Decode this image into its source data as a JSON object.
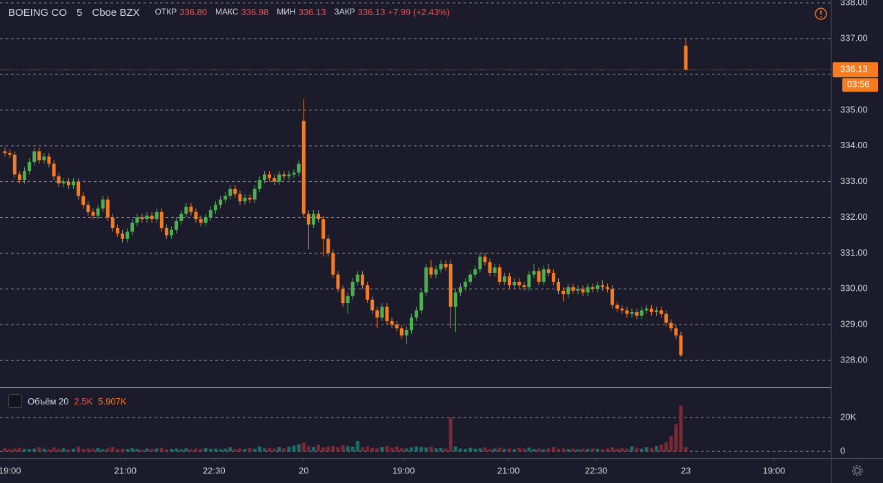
{
  "header": {
    "symbol": "BOEING CO",
    "interval": "5",
    "exchange": "Cboe BZX",
    "open_label": "ОТКР",
    "open": "336.80",
    "high_label": "МАКС",
    "high": "336.98",
    "low_label": "МИН",
    "low": "336.13",
    "close_label": "ЗАКР",
    "close": "336.13",
    "change": "+7.99 (+2.43%)"
  },
  "volume_legend": {
    "name": "Объём 20",
    "value": "2.5K",
    "average": "5.907K"
  },
  "chart_data": {
    "type": "candlestick",
    "open": [
      333.85,
      333.8,
      333.75,
      333.2,
      333.05,
      333.3,
      333.55,
      333.85,
      333.6,
      333.7,
      333.5,
      333.15,
      332.95,
      333.0,
      332.9,
      333.0,
      332.6,
      332.35,
      332.15,
      332.05,
      332.25,
      332.5,
      332.0,
      331.7,
      331.55,
      331.4,
      331.6,
      331.85,
      332.0,
      331.95,
      332.05,
      331.95,
      332.15,
      331.7,
      331.5,
      331.65,
      331.9,
      332.1,
      332.3,
      332.15,
      331.95,
      331.85,
      332.0,
      332.2,
      332.35,
      332.5,
      332.6,
      332.8,
      332.65,
      332.45,
      332.55,
      332.5,
      332.8,
      333.05,
      333.2,
      333.1,
      333.0,
      333.2,
      333.15,
      333.2,
      333.25,
      334.7,
      332.1,
      331.8,
      332.1,
      331.95,
      331.4,
      331.0,
      330.4,
      330.0,
      329.6,
      329.8,
      330.2,
      330.4,
      330.1,
      329.7,
      329.4,
      329.2,
      329.5,
      329.1,
      329.0,
      328.9,
      328.7,
      328.85,
      329.2,
      329.4,
      329.9,
      330.6,
      330.4,
      330.55,
      330.7,
      330.7,
      329.5,
      329.9,
      330.05,
      330.2,
      330.4,
      330.55,
      330.9,
      330.75,
      330.45,
      330.6,
      330.2,
      330.35,
      330.1,
      330.2,
      330.1,
      330.05,
      330.4,
      330.5,
      330.2,
      330.55,
      330.45,
      330.2,
      329.95,
      329.85,
      330.05,
      329.95,
      330.0,
      329.9,
      330.05,
      330.0,
      330.1,
      330.05,
      330.0,
      329.55,
      329.45,
      329.4,
      329.3,
      329.35,
      329.25,
      329.4,
      329.45,
      329.35,
      329.4,
      329.3,
      329.05,
      328.9,
      328.7,
      336.8
    ],
    "high": [
      333.95,
      333.9,
      333.85,
      333.3,
      333.4,
      333.65,
      333.95,
      333.95,
      333.8,
      333.8,
      333.6,
      333.25,
      333.1,
      333.1,
      333.1,
      333.1,
      332.7,
      332.45,
      332.25,
      332.35,
      332.6,
      332.6,
      332.1,
      331.8,
      331.65,
      331.7,
      331.95,
      332.1,
      332.1,
      332.15,
      332.15,
      332.25,
      332.25,
      331.8,
      331.75,
      332.0,
      332.2,
      332.4,
      332.4,
      332.25,
      332.05,
      332.1,
      332.3,
      332.45,
      332.6,
      332.7,
      332.9,
      332.9,
      332.75,
      332.65,
      332.65,
      332.9,
      333.15,
      333.3,
      333.3,
      333.2,
      333.3,
      333.3,
      333.3,
      333.35,
      333.6,
      335.3,
      332.2,
      332.2,
      332.2,
      332.05,
      331.5,
      331.1,
      330.5,
      330.1,
      329.9,
      330.3,
      330.5,
      330.5,
      330.2,
      329.8,
      329.5,
      329.6,
      329.6,
      329.2,
      329.1,
      329.0,
      328.95,
      329.3,
      329.5,
      330.0,
      330.7,
      330.8,
      330.65,
      330.8,
      330.8,
      330.8,
      330.0,
      330.15,
      330.3,
      330.5,
      330.65,
      331.0,
      331.0,
      330.85,
      330.7,
      330.7,
      330.45,
      330.45,
      330.3,
      330.3,
      330.2,
      330.5,
      330.7,
      330.6,
      330.65,
      330.7,
      330.55,
      330.3,
      330.05,
      330.15,
      330.15,
      330.1,
      330.1,
      330.15,
      330.15,
      330.2,
      330.25,
      330.15,
      330.1,
      329.65,
      329.55,
      329.5,
      329.45,
      329.45,
      329.5,
      329.55,
      329.55,
      329.5,
      329.5,
      329.4,
      329.15,
      329.0,
      328.8,
      336.98
    ],
    "low": [
      333.7,
      333.65,
      333.1,
      332.95,
      332.95,
      333.2,
      333.45,
      333.5,
      333.5,
      333.4,
      333.05,
      332.85,
      332.85,
      332.8,
      332.8,
      332.5,
      332.25,
      332.05,
      331.95,
      331.95,
      332.15,
      331.9,
      331.6,
      331.45,
      331.3,
      331.3,
      331.5,
      331.75,
      331.85,
      331.85,
      331.85,
      331.85,
      331.6,
      331.4,
      331.4,
      331.55,
      331.8,
      332.0,
      332.05,
      331.85,
      331.75,
      331.75,
      331.9,
      332.1,
      332.25,
      332.4,
      332.5,
      332.55,
      332.35,
      332.35,
      332.4,
      332.4,
      332.7,
      332.95,
      333.0,
      332.9,
      332.9,
      333.05,
      333.05,
      333.1,
      333.15,
      332.0,
      331.1,
      331.7,
      331.85,
      330.9,
      330.9,
      330.3,
      329.9,
      329.5,
      329.3,
      329.7,
      330.1,
      330.0,
      329.6,
      329.3,
      328.9,
      329.1,
      329.0,
      328.9,
      328.8,
      328.6,
      328.45,
      328.75,
      329.1,
      329.3,
      329.8,
      330.3,
      330.3,
      330.45,
      330.5,
      328.9,
      328.8,
      329.8,
      329.95,
      330.1,
      330.3,
      330.45,
      330.65,
      330.35,
      330.35,
      330.1,
      330.1,
      330.0,
      330.0,
      330.0,
      329.95,
      329.95,
      330.3,
      330.1,
      330.1,
      330.35,
      330.1,
      329.85,
      329.65,
      329.75,
      329.85,
      329.85,
      329.8,
      329.8,
      329.9,
      329.9,
      329.95,
      329.9,
      329.45,
      329.35,
      329.3,
      329.2,
      329.2,
      329.15,
      329.15,
      329.3,
      329.25,
      329.25,
      329.2,
      328.95,
      328.8,
      328.6,
      328.1,
      336.13
    ],
    "close": [
      333.8,
      333.75,
      333.2,
      333.05,
      333.3,
      333.55,
      333.85,
      333.6,
      333.7,
      333.5,
      333.15,
      332.95,
      333.0,
      332.9,
      333.0,
      332.6,
      332.35,
      332.15,
      332.05,
      332.25,
      332.5,
      332.0,
      331.7,
      331.55,
      331.4,
      331.6,
      331.85,
      332.0,
      331.95,
      332.05,
      331.95,
      332.15,
      331.7,
      331.5,
      331.65,
      331.9,
      332.1,
      332.3,
      332.15,
      331.95,
      331.85,
      332.0,
      332.2,
      332.35,
      332.5,
      332.6,
      332.8,
      332.65,
      332.45,
      332.55,
      332.5,
      332.8,
      333.05,
      333.2,
      333.1,
      333.0,
      333.2,
      333.15,
      333.2,
      333.25,
      333.5,
      332.1,
      331.8,
      332.1,
      331.95,
      331.4,
      331.0,
      330.4,
      330.0,
      329.6,
      329.8,
      330.2,
      330.4,
      330.1,
      329.7,
      329.4,
      329.2,
      329.5,
      329.1,
      329.0,
      328.9,
      328.7,
      328.85,
      329.2,
      329.4,
      329.9,
      330.6,
      330.4,
      330.55,
      330.7,
      330.6,
      329.5,
      329.9,
      330.05,
      330.2,
      330.4,
      330.55,
      330.9,
      330.75,
      330.45,
      330.6,
      330.2,
      330.35,
      330.1,
      330.2,
      330.1,
      330.05,
      330.4,
      330.5,
      330.2,
      330.55,
      330.45,
      330.2,
      329.95,
      329.85,
      330.05,
      329.95,
      330.0,
      329.9,
      330.05,
      330.0,
      330.1,
      330.05,
      330.0,
      329.55,
      329.45,
      329.4,
      329.3,
      329.35,
      329.25,
      329.4,
      329.45,
      329.35,
      329.4,
      329.3,
      329.05,
      328.9,
      328.7,
      328.15,
      336.13
    ],
    "volume": [
      2000,
      1200,
      1800,
      2200,
      1500,
      1300,
      1700,
      2400,
      1600,
      1200,
      2300,
      1400,
      1900,
      1100,
      1600,
      2800,
      1300,
      1700,
      1500,
      2100,
      1200,
      1800,
      2600,
      1400,
      1600,
      1300,
      2000,
      1500,
      1100,
      1700,
      1400,
      1800,
      2200,
      1300,
      1500,
      1700,
      1200,
      1900,
      1400,
      1600,
      1300,
      2100,
      1500,
      1800,
      1200,
      1600,
      2400,
      1400,
      1700,
      1300,
      2000,
      1500,
      2900,
      1800,
      2200,
      1600,
      2500,
      1900,
      2800,
      3500,
      4200,
      5200,
      3000,
      2600,
      4000,
      2300,
      2800,
      3300,
      2500,
      3600,
      3100,
      2700,
      6200,
      2400,
      3000,
      2100,
      1900,
      2600,
      3200,
      2200,
      2800,
      2000,
      1800,
      2400,
      3000,
      2600,
      2300,
      2700,
      1900,
      2100,
      1700,
      20000,
      2900,
      1800,
      1500,
      2200,
      1600,
      1900,
      2400,
      1400,
      1700,
      2200,
      1500,
      1800,
      1300,
      2100,
      1600,
      2300,
      1400,
      1700,
      1200,
      1900,
      2600,
      1500,
      1800,
      1300,
      1600,
      1200,
      1700,
      1400,
      1900,
      1500,
      1300,
      1800,
      2400,
      1500,
      2000,
      1700,
      3000,
      2200,
      1600,
      2500,
      2100,
      3200,
      3800,
      5400,
      9000,
      16000,
      27000,
      2500
    ],
    "up_color": "#4caf50",
    "down_color": "#f57c20",
    "volume_up_color": "#1f6b66",
    "volume_down_color": "#7a2a35",
    "xlim": [
      -1,
      168.7
    ],
    "xticks": [
      {
        "value": 1,
        "label": "19:00"
      },
      {
        "value": 24.6,
        "label": "21:00"
      },
      {
        "value": 42.7,
        "label": "22:30"
      },
      {
        "value": 61,
        "label": "20"
      },
      {
        "value": 81.4,
        "label": "19:00"
      },
      {
        "value": 102.8,
        "label": "21:00"
      },
      {
        "value": 120.7,
        "label": "22:30"
      },
      {
        "value": 139,
        "label": "23"
      },
      {
        "value": 157,
        "label": "19:00"
      }
    ],
    "ylim": [
      327.25,
      338.08
    ],
    "yticks": [
      {
        "value": 328,
        "label": "328.00"
      },
      {
        "value": 329,
        "label": "329.00"
      },
      {
        "value": 330,
        "label": "330.00"
      },
      {
        "value": 331,
        "label": "331.00"
      },
      {
        "value": 332,
        "label": "332.00"
      },
      {
        "value": 333,
        "label": "333.00"
      },
      {
        "value": 334,
        "label": "334.00"
      },
      {
        "value": 335,
        "label": "335.00"
      },
      {
        "value": 336,
        "label": "336.00"
      },
      {
        "value": 337,
        "label": "337.00"
      },
      {
        "value": 338,
        "label": "338.00"
      }
    ],
    "volume_ylim": [
      -4000,
      37500
    ],
    "volume_yticks": [
      0,
      {
        "value": 20000,
        "label": "20K"
      }
    ],
    "grid": true,
    "last_price": 336.13,
    "countdown": "03:56",
    "price_line_color": "#f57c20"
  }
}
